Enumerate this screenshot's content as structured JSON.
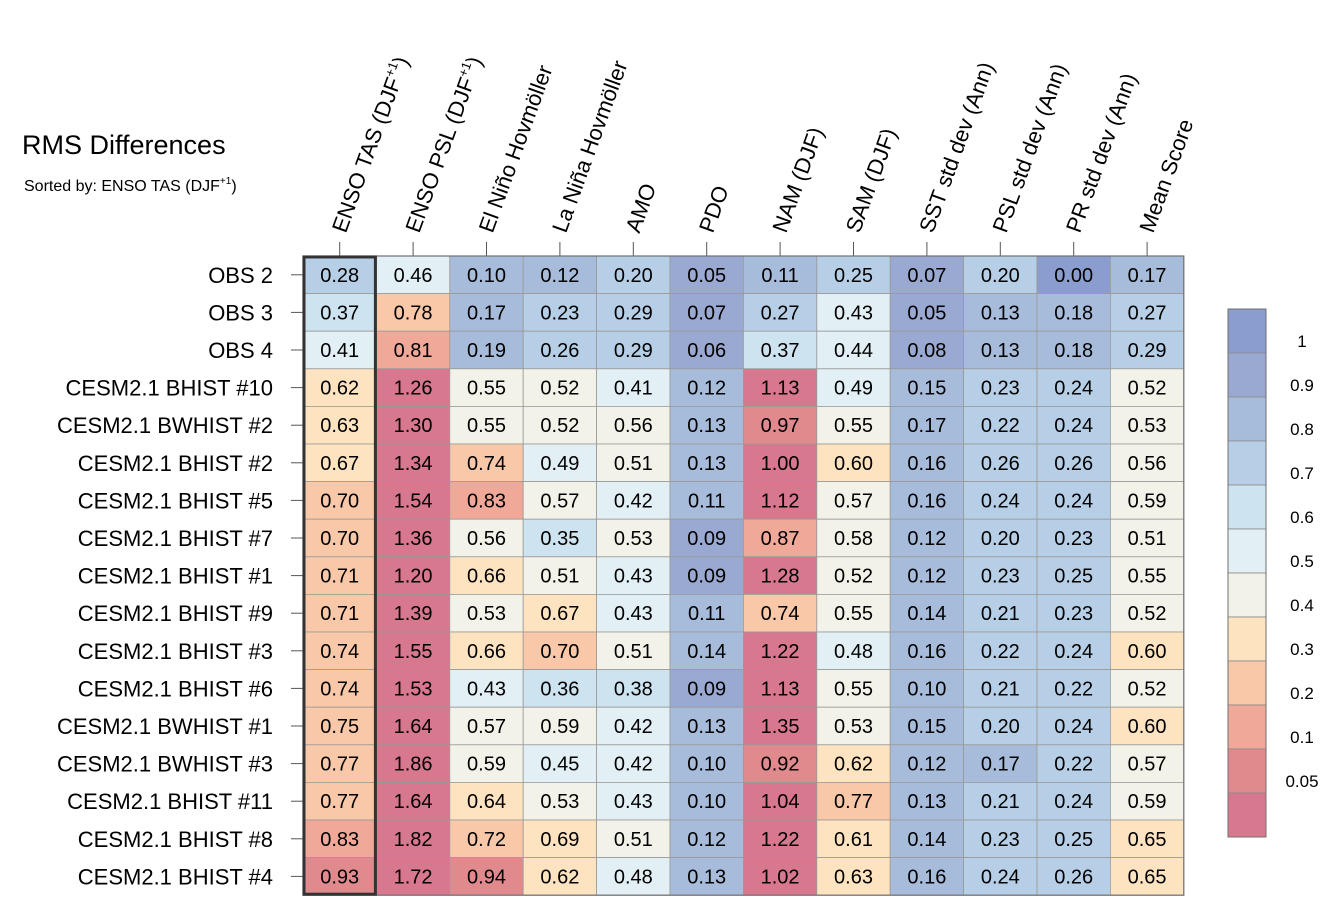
{
  "chart_data": {
    "type": "heatmap",
    "title": "RMS Differences",
    "subtitle": "Sorted by: ENSO TAS (DJF",
    "subtitle_sup": "+1",
    "subtitle_end": ")",
    "columns": [
      {
        "label": "ENSO TAS (DJF",
        "sup": "+1",
        "end": ")"
      },
      {
        "label": "ENSO PSL (DJF",
        "sup": "+1",
        "end": ")"
      },
      {
        "label": "El Niño Hovmöller",
        "sup": "",
        "end": ""
      },
      {
        "label": "La Niña Hovmöller",
        "sup": "",
        "end": ""
      },
      {
        "label": "AMO",
        "sup": "",
        "end": ""
      },
      {
        "label": "PDO",
        "sup": "",
        "end": ""
      },
      {
        "label": "NAM (DJF)",
        "sup": "",
        "end": ""
      },
      {
        "label": "SAM (DJF)",
        "sup": "",
        "end": ""
      },
      {
        "label": "SST std dev (Ann)",
        "sup": "",
        "end": ""
      },
      {
        "label": "PSL std dev (Ann)",
        "sup": "",
        "end": ""
      },
      {
        "label": "PR std dev (Ann)",
        "sup": "",
        "end": ""
      },
      {
        "label": "Mean Score",
        "sup": "",
        "end": ""
      }
    ],
    "rows": [
      "OBS 2",
      "OBS 3",
      "OBS 4",
      "CESM2.1 BHIST #10",
      "CESM2.1 BWHIST #2",
      "CESM2.1 BHIST #2",
      "CESM2.1 BHIST #5",
      "CESM2.1 BHIST #7",
      "CESM2.1 BHIST #1",
      "CESM2.1 BHIST #9",
      "CESM2.1 BHIST #3",
      "CESM2.1 BHIST #6",
      "CESM2.1 BWHIST #1",
      "CESM2.1 BWHIST #3",
      "CESM2.1 BHIST #11",
      "CESM2.1 BHIST #8",
      "CESM2.1 BHIST #4"
    ],
    "values": [
      [
        "0.28",
        "0.46",
        "0.10",
        "0.12",
        "0.20",
        "0.05",
        "0.11",
        "0.25",
        "0.07",
        "0.20",
        "0.00",
        "0.17"
      ],
      [
        "0.37",
        "0.78",
        "0.17",
        "0.23",
        "0.29",
        "0.07",
        "0.27",
        "0.43",
        "0.05",
        "0.13",
        "0.18",
        "0.27"
      ],
      [
        "0.41",
        "0.81",
        "0.19",
        "0.26",
        "0.29",
        "0.06",
        "0.37",
        "0.44",
        "0.08",
        "0.13",
        "0.18",
        "0.29"
      ],
      [
        "0.62",
        "1.26",
        "0.55",
        "0.52",
        "0.41",
        "0.12",
        "1.13",
        "0.49",
        "0.15",
        "0.23",
        "0.24",
        "0.52"
      ],
      [
        "0.63",
        "1.30",
        "0.55",
        "0.52",
        "0.56",
        "0.13",
        "0.97",
        "0.55",
        "0.17",
        "0.22",
        "0.24",
        "0.53"
      ],
      [
        "0.67",
        "1.34",
        "0.74",
        "0.49",
        "0.51",
        "0.13",
        "1.00",
        "0.60",
        "0.16",
        "0.26",
        "0.26",
        "0.56"
      ],
      [
        "0.70",
        "1.54",
        "0.83",
        "0.57",
        "0.42",
        "0.11",
        "1.12",
        "0.57",
        "0.16",
        "0.24",
        "0.24",
        "0.59"
      ],
      [
        "0.70",
        "1.36",
        "0.56",
        "0.35",
        "0.53",
        "0.09",
        "0.87",
        "0.58",
        "0.12",
        "0.20",
        "0.23",
        "0.51"
      ],
      [
        "0.71",
        "1.20",
        "0.66",
        "0.51",
        "0.43",
        "0.09",
        "1.28",
        "0.52",
        "0.12",
        "0.23",
        "0.25",
        "0.55"
      ],
      [
        "0.71",
        "1.39",
        "0.53",
        "0.67",
        "0.43",
        "0.11",
        "0.74",
        "0.55",
        "0.14",
        "0.21",
        "0.23",
        "0.52"
      ],
      [
        "0.74",
        "1.55",
        "0.66",
        "0.70",
        "0.51",
        "0.14",
        "1.22",
        "0.48",
        "0.16",
        "0.22",
        "0.24",
        "0.60"
      ],
      [
        "0.74",
        "1.53",
        "0.43",
        "0.36",
        "0.38",
        "0.09",
        "1.13",
        "0.55",
        "0.10",
        "0.21",
        "0.22",
        "0.52"
      ],
      [
        "0.75",
        "1.64",
        "0.57",
        "0.59",
        "0.42",
        "0.13",
        "1.35",
        "0.53",
        "0.15",
        "0.20",
        "0.24",
        "0.60"
      ],
      [
        "0.77",
        "1.86",
        "0.59",
        "0.45",
        "0.42",
        "0.10",
        "0.92",
        "0.62",
        "0.12",
        "0.17",
        "0.22",
        "0.57"
      ],
      [
        "0.77",
        "1.64",
        "0.64",
        "0.53",
        "0.43",
        "0.10",
        "1.04",
        "0.77",
        "0.13",
        "0.21",
        "0.24",
        "0.59"
      ],
      [
        "0.83",
        "1.82",
        "0.72",
        "0.69",
        "0.51",
        "0.12",
        "1.22",
        "0.61",
        "0.14",
        "0.23",
        "0.25",
        "0.65"
      ],
      [
        "0.93",
        "1.72",
        "0.94",
        "0.62",
        "0.48",
        "0.13",
        "1.02",
        "0.63",
        "0.16",
        "0.24",
        "0.26",
        "0.65"
      ]
    ],
    "highlighted_column": 0,
    "colorbar": {
      "ticks": [
        "1",
        "0.9",
        "0.8",
        "0.7",
        "0.6",
        "0.5",
        "0.4",
        "0.3",
        "0.2",
        "0.1",
        "0.05"
      ],
      "levels": [
        0.05,
        0.1,
        0.2,
        0.3,
        0.4,
        0.5,
        0.6,
        0.7,
        0.8,
        0.9,
        1.0
      ],
      "colors": [
        "#d7788e",
        "#e08a8e",
        "#f0a898",
        "#f8c8a8",
        "#fde3bf",
        "#f3f2e8",
        "#e2eff5",
        "#cde3ef",
        "#b7cfe6",
        "#a7bcdb",
        "#9aa9d2",
        "#8b9cce"
      ]
    }
  }
}
